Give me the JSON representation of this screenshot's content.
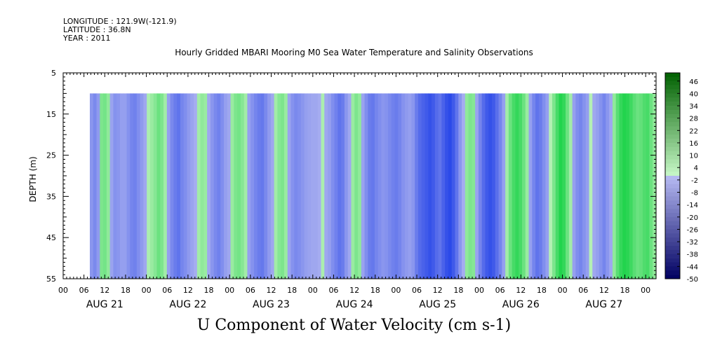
{
  "header": {
    "longitude": "LONGITUDE : 121.9W(-121.9)",
    "latitude": "LATITUDE : 36.8N",
    "year": "YEAR : 2011"
  },
  "title": "Hourly Gridded MBARI Mooring M0 Sea Water Temperature and Salinity Observations",
  "bottom_title": "U Component of Water Velocity (cm s-1)",
  "chart_data": {
    "type": "heatmap",
    "title": "Hourly Gridded MBARI Mooring M0 Sea Water Temperature and Salinity Observations",
    "xlabel": "",
    "ylabel": "DEPTH (m)",
    "ylim": [
      55,
      5
    ],
    "y_ticks": [
      "5",
      "15",
      "25",
      "35",
      "45",
      "55"
    ],
    "x_hour_ticks": [
      "00",
      "06",
      "12",
      "18",
      "00",
      "06",
      "12",
      "18",
      "00",
      "06",
      "12",
      "18",
      "00",
      "06",
      "12",
      "18",
      "00",
      "06",
      "12",
      "18",
      "00",
      "06",
      "12",
      "18",
      "00",
      "06",
      "12",
      "18",
      "00"
    ],
    "x_day_labels": [
      "AUG 21",
      "AUG 22",
      "AUG 23",
      "AUG 24",
      "AUG 25",
      "AUG 26",
      "AUG 27"
    ],
    "data_time_range": [
      "AUG 21 07",
      "AUG 28 00"
    ],
    "data_depth_range": [
      10,
      55
    ],
    "colorbar": {
      "min": -50,
      "max": 50,
      "step": 2,
      "tick_labels": [
        "46",
        "40",
        "34",
        "28",
        "22",
        "16",
        "10",
        "4",
        "-2",
        "-8",
        "-14",
        "-20",
        "-26",
        "-32",
        "-38",
        "-44",
        "-50"
      ]
    },
    "colors": {
      "negative_light": "#aab0f0",
      "negative_dark": "#2040e8",
      "positive_light": "#b4f0b4",
      "positive_dark": "#10d040"
    },
    "vertical_structure": "columns of alternating sign, nearly uniform with depth",
    "u_profile_hourly": [
      -6,
      -9,
      -5,
      6,
      7,
      4,
      -3,
      -7,
      -6,
      -4,
      -4,
      -7,
      -10,
      -11,
      -8,
      -5,
      -2,
      1,
      3,
      5,
      8,
      6,
      2,
      -4,
      -9,
      -12,
      -14,
      -10,
      -8,
      -5,
      -3,
      -1,
      2,
      4,
      3,
      -2,
      -6,
      -9,
      -11,
      -8,
      -4,
      -2,
      3,
      6,
      7,
      5,
      2,
      -4,
      -7,
      -10,
      -12,
      -13,
      -9,
      -5,
      -2,
      2,
      5,
      6,
      3,
      -3,
      -7,
      -9,
      -8,
      -6,
      -4,
      -3,
      -2,
      -2,
      -1,
      1,
      -2,
      -4,
      -8,
      -11,
      -14,
      -12,
      -6,
      -2,
      3,
      6,
      4,
      -3,
      -8,
      -12,
      -13,
      -10,
      -8,
      -6,
      -7,
      -9,
      -11,
      -12,
      -10,
      -7,
      -5,
      -4,
      -6,
      -12,
      -16,
      -18,
      -20,
      -22,
      -20,
      -16,
      -14,
      -18,
      -22,
      -24,
      -20,
      -14,
      -6,
      -1,
      4,
      6,
      5,
      -3,
      -10,
      -16,
      -20,
      -22,
      -20,
      -15,
      -10,
      -4,
      2,
      8,
      12,
      14,
      12,
      8,
      3,
      -4,
      -10,
      -14,
      -12,
      -8,
      -4,
      0,
      6,
      12,
      16,
      14,
      8,
      2,
      -4,
      -8,
      -10,
      -7,
      -4,
      0,
      -2,
      -4,
      -7,
      -10,
      -6,
      -2,
      4,
      10,
      14,
      16,
      15,
      13,
      10,
      8,
      9,
      11,
      12,
      8,
      4
    ]
  }
}
